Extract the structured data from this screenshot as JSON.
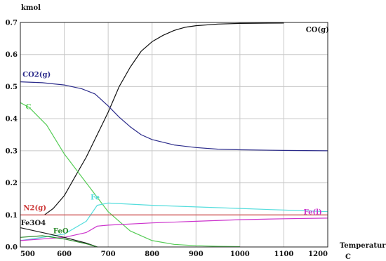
{
  "chart_data": {
    "type": "line",
    "title": "",
    "ylabel": "kmol",
    "xlabel": "Temperature",
    "xunit": "C",
    "xlim": [
      500,
      1200
    ],
    "ylim": [
      0,
      0.7
    ],
    "xticks": [
      500,
      600,
      700,
      800,
      900,
      1000,
      1100,
      1200
    ],
    "yticks": [
      0.0,
      0.1,
      0.2,
      0.3,
      0.4,
      0.5,
      0.6,
      0.7
    ],
    "grid": true,
    "legend": "none",
    "series": [
      {
        "name": "CO(g)",
        "color": "#111111",
        "x": [
          555,
          575,
          600,
          625,
          650,
          675,
          700,
          725,
          750,
          775,
          800,
          825,
          850,
          875,
          900,
          950,
          1000,
          1100
        ],
        "y": [
          0.1,
          0.12,
          0.16,
          0.22,
          0.28,
          0.35,
          0.42,
          0.5,
          0.56,
          0.61,
          0.64,
          0.66,
          0.675,
          0.685,
          0.69,
          0.695,
          0.697,
          0.698
        ]
      },
      {
        "name": "CO2(g)",
        "color": "#2a2a8a",
        "x": [
          500,
          550,
          600,
          640,
          670,
          700,
          725,
          750,
          775,
          800,
          850,
          900,
          950,
          1000,
          1100,
          1200
        ],
        "y": [
          0.515,
          0.512,
          0.505,
          0.493,
          0.477,
          0.44,
          0.405,
          0.375,
          0.35,
          0.335,
          0.318,
          0.31,
          0.305,
          0.303,
          0.301,
          0.3
        ]
      },
      {
        "name": "C",
        "color": "#55cc55",
        "x": [
          500,
          520,
          560,
          600,
          650,
          700,
          750,
          800,
          850,
          900,
          950,
          1000
        ],
        "y": [
          0.45,
          0.435,
          0.38,
          0.29,
          0.2,
          0.11,
          0.05,
          0.02,
          0.008,
          0.004,
          0.002,
          0.001
        ]
      },
      {
        "name": "Fe",
        "color": "#55dddd",
        "x": [
          500,
          600,
          650,
          675,
          700,
          800,
          900,
          1000,
          1100,
          1200
        ],
        "y": [
          0.02,
          0.04,
          0.08,
          0.13,
          0.137,
          0.13,
          0.125,
          0.12,
          0.115,
          0.11
        ]
      },
      {
        "name": "Fe(l)",
        "color": "#cc33cc",
        "x": [
          500,
          600,
          650,
          675,
          700,
          800,
          900,
          1000,
          1100,
          1200
        ],
        "y": [
          0.02,
          0.03,
          0.045,
          0.065,
          0.068,
          0.075,
          0.08,
          0.085,
          0.088,
          0.09
        ]
      },
      {
        "name": "N2(g)",
        "color": "#cc3333",
        "x": [
          500,
          1200
        ],
        "y": [
          0.1,
          0.1
        ]
      },
      {
        "name": "Fe3O4",
        "color": "#1a1a1a",
        "x": [
          500,
          550,
          600,
          650,
          675
        ],
        "y": [
          0.06,
          0.045,
          0.03,
          0.012,
          0.0
        ]
      },
      {
        "name": "FeO",
        "color": "#2a8a2a",
        "x": [
          500,
          550,
          600,
          650,
          675
        ],
        "y": [
          0.03,
          0.035,
          0.025,
          0.01,
          0.0
        ]
      }
    ],
    "labels": [
      {
        "text": "CO(g)",
        "x": 1150,
        "y": 0.67,
        "color": "#111111"
      },
      {
        "text": "CO2(g)",
        "x": 505,
        "y": 0.53,
        "color": "#2a2a8a"
      },
      {
        "text": "C",
        "x": 512,
        "y": 0.43,
        "color": "#55cc55"
      },
      {
        "text": "Fe",
        "x": 660,
        "y": 0.148,
        "color": "#55dddd"
      },
      {
        "text": "Fe(l)",
        "x": 1145,
        "y": 0.102,
        "color": "#cc33cc"
      },
      {
        "text": "N2(g)",
        "x": 507,
        "y": 0.115,
        "color": "#cc3333"
      },
      {
        "text": "Fe3O4",
        "x": 501,
        "y": 0.068,
        "color": "#1a1a1a"
      },
      {
        "text": "FeO",
        "x": 575,
        "y": 0.043,
        "color": "#2a8a2a"
      }
    ]
  }
}
